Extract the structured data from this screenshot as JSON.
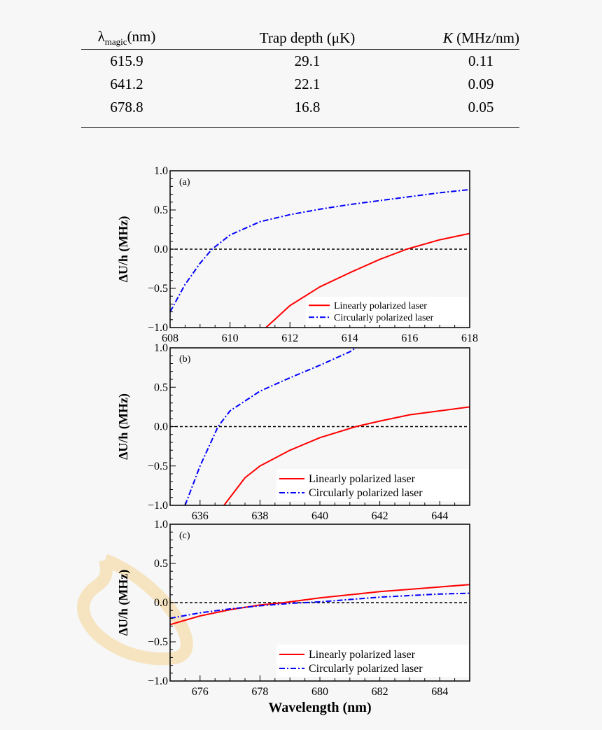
{
  "table": {
    "headers": [
      {
        "main": "λ",
        "sub": "magic",
        "unit": "(nm)"
      },
      {
        "main": "Trap depth",
        "sub": "",
        "unit": "(μK)"
      },
      {
        "main": "K",
        "sub": "",
        "unit": "(MHz/nm)"
      }
    ],
    "rows": [
      [
        "615.9",
        "29.1",
        "0.11"
      ],
      [
        "641.2",
        "22.1",
        "0.09"
      ],
      [
        "678.8",
        "16.8",
        "0.05"
      ]
    ]
  },
  "colors": {
    "linear": "#ff0000",
    "circular": "#0000ff",
    "zero_line": "#000000",
    "watermark": "#f5deb3"
  },
  "chart_data": [
    {
      "type": "line",
      "panel_label": "(a)",
      "ylabel": "ΔU/h (MHz)",
      "xlabel": "",
      "xlim": [
        608,
        618
      ],
      "ylim": [
        -1.0,
        1.0
      ],
      "xticks": [
        "608",
        "610",
        "612",
        "614",
        "616",
        "618"
      ],
      "yticks": [
        "−1.0",
        "−0.5",
        "0.0",
        "0.5",
        "1.0"
      ],
      "legend_placement": "lower-right",
      "zero_line": true,
      "series": [
        {
          "name": "Linearly polarized laser",
          "style": "solid",
          "x": [
            611.2,
            612,
            613,
            614,
            615,
            615.9,
            617,
            618
          ],
          "y": [
            -1,
            -0.72,
            -0.48,
            -0.3,
            -0.13,
            0,
            0.12,
            0.2
          ]
        },
        {
          "name": "Circularly polarized laser",
          "style": "dashdot",
          "x": [
            608,
            608.5,
            609,
            609.4,
            610,
            611,
            612,
            613,
            614,
            615,
            616,
            617,
            618
          ],
          "y": [
            -0.8,
            -0.45,
            -0.18,
            0,
            0.18,
            0.35,
            0.44,
            0.51,
            0.57,
            0.62,
            0.67,
            0.72,
            0.76
          ]
        }
      ]
    },
    {
      "type": "line",
      "panel_label": "(b)",
      "ylabel": "ΔU/h (MHz)",
      "xlabel": "",
      "xlim": [
        635,
        645
      ],
      "ylim": [
        -1.0,
        1.0
      ],
      "xticks": [
        "636",
        "638",
        "640",
        "642",
        "644"
      ],
      "yticks": [
        "−1.0",
        "−0.5",
        "0.0",
        "0.5",
        "1.0"
      ],
      "legend_placement": "lower-right",
      "zero_line": true,
      "series": [
        {
          "name": "Linearly polarized laser",
          "style": "solid",
          "x": [
            636.8,
            637.5,
            638,
            639,
            640,
            641.2,
            642,
            643,
            644,
            645
          ],
          "y": [
            -1,
            -0.65,
            -0.5,
            -0.3,
            -0.14,
            0,
            0.07,
            0.15,
            0.2,
            0.25
          ]
        },
        {
          "name": "Circularly polarized laser",
          "style": "dashdot",
          "x": [
            635.5,
            636,
            636.6,
            637,
            638,
            639,
            640,
            641,
            641.2
          ],
          "y": [
            -1,
            -0.5,
            0,
            0.2,
            0.45,
            0.62,
            0.78,
            0.95,
            1.0
          ]
        }
      ]
    },
    {
      "type": "line",
      "panel_label": "(c)",
      "ylabel": "ΔU/h (MHz)",
      "xlabel": "Wavelength (nm)",
      "xlim": [
        675,
        685
      ],
      "ylim": [
        -1.0,
        1.0
      ],
      "xticks": [
        "676",
        "678",
        "680",
        "682",
        "684"
      ],
      "yticks": [
        "−1.0",
        "−0.5",
        "0.0",
        "0.5",
        "1.0"
      ],
      "legend_placement": "lower-right",
      "zero_line": true,
      "series": [
        {
          "name": "Linearly polarized laser",
          "style": "solid",
          "x": [
            675,
            676,
            677,
            678,
            678.8,
            680,
            681,
            682,
            683,
            684,
            685
          ],
          "y": [
            -0.28,
            -0.17,
            -0.09,
            -0.03,
            0,
            0.06,
            0.1,
            0.14,
            0.17,
            0.2,
            0.23
          ]
        },
        {
          "name": "Circularly polarized laser",
          "style": "dashdot",
          "x": [
            675,
            676,
            677,
            678,
            679,
            680,
            681,
            682,
            683,
            684,
            685
          ],
          "y": [
            -0.2,
            -0.13,
            -0.08,
            -0.04,
            -0.01,
            0.01,
            0.04,
            0.07,
            0.09,
            0.11,
            0.12
          ]
        }
      ]
    }
  ]
}
